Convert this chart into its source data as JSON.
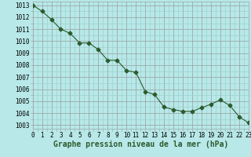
{
  "x": [
    0,
    1,
    2,
    3,
    4,
    5,
    6,
    7,
    8,
    9,
    10,
    11,
    12,
    13,
    14,
    15,
    16,
    17,
    18,
    19,
    20,
    21,
    22,
    23
  ],
  "y": [
    1013.0,
    1012.5,
    1011.8,
    1011.0,
    1010.65,
    1009.85,
    1009.85,
    1009.3,
    1008.4,
    1008.4,
    1007.55,
    1007.4,
    1005.8,
    1005.55,
    1004.5,
    1004.3,
    1004.15,
    1004.15,
    1004.45,
    1004.75,
    1005.1,
    1004.65,
    1003.7,
    1003.2
  ],
  "line_color": "#2d5a2d",
  "marker": "D",
  "marker_size": 2.5,
  "bg_color": "#b8e8e8",
  "grid_minor_color": "#99cccc",
  "grid_major_color": "#99aaaa",
  "xlabel": "Graphe pression niveau de la mer (hPa)",
  "ylabel_ticks": [
    1003,
    1004,
    1005,
    1006,
    1007,
    1008,
    1009,
    1010,
    1011,
    1012,
    1013
  ],
  "xlim": [
    0,
    23
  ],
  "ylim": [
    1002.7,
    1013.3
  ],
  "tick_fontsize": 5.5,
  "label_fontsize": 7.0,
  "linewidth": 0.8
}
